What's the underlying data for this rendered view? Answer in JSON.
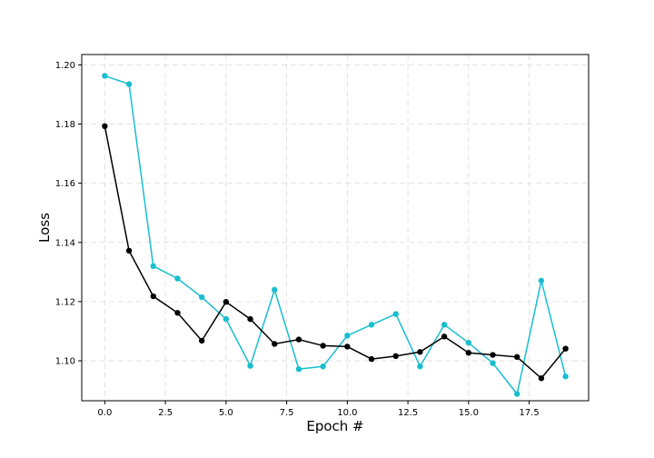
{
  "chart_data": {
    "type": "line",
    "title": "",
    "xlabel": "Epoch #",
    "ylabel": "Loss",
    "xlim": [
      -0.95,
      19.95
    ],
    "ylim": [
      1.0865,
      1.2035
    ],
    "grid": true,
    "x": [
      0,
      1,
      2,
      3,
      4,
      5,
      6,
      7,
      8,
      9,
      10,
      11,
      12,
      13,
      14,
      15,
      16,
      17,
      18,
      19
    ],
    "x_ticks": [
      0.0,
      2.5,
      5.0,
      7.5,
      10.0,
      12.5,
      15.0,
      17.5
    ],
    "x_tick_labels": [
      "0.0",
      "2.5",
      "5.0",
      "7.5",
      "10.0",
      "12.5",
      "15.0",
      "17.5"
    ],
    "y_ticks": [
      1.1,
      1.12,
      1.14,
      1.16,
      1.18,
      1.2
    ],
    "y_tick_labels": [
      "1.10",
      "1.12",
      "1.14",
      "1.16",
      "1.18",
      "1.20"
    ],
    "series": [
      {
        "color": "#17becf",
        "marker": "circle",
        "values": [
          1.1963,
          1.1935,
          1.132,
          1.1278,
          1.1215,
          1.1141,
          1.0983,
          1.124,
          1.0972,
          1.0981,
          1.1085,
          1.1122,
          1.1158,
          1.0981,
          1.1122,
          1.1061,
          1.0992,
          1.0888,
          1.1271,
          1.0947
        ]
      },
      {
        "color": "#000000",
        "marker": "circle",
        "values": [
          1.1793,
          1.1372,
          1.1218,
          1.1162,
          1.1068,
          1.1199,
          1.1141,
          1.1057,
          1.1072,
          1.1051,
          1.1048,
          1.1006,
          1.1016,
          1.103,
          1.1082,
          1.1027,
          1.102,
          1.1013,
          1.0941,
          1.1041
        ]
      }
    ]
  }
}
